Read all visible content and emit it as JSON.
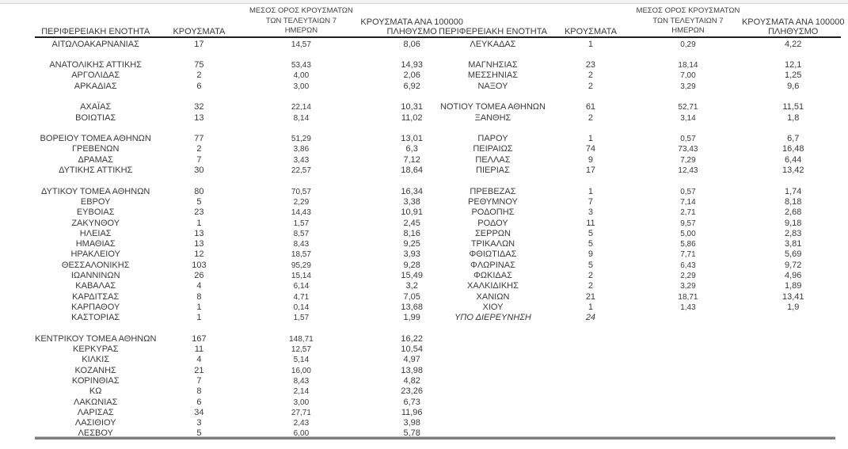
{
  "colors": {
    "text": "#3a3a3a",
    "header_rule": "#1f1f1f",
    "bottom_rule": "#7d7d7d",
    "top_strip": "#f1f1ef"
  },
  "columns": {
    "region": "ΠΕΡΙΦΕΡΕΙΑΚΗ ΕΝΟΤΗΤΑ",
    "cases": "ΚΡΟΥΣΜΑΤΑ",
    "avg7_lines": [
      "ΜΕΣΟΣ ΟΡΟΣ ΚΡΟΥΣΜΑΤΩΝ",
      "ΤΩΝ ΤΕΛΕΥΤΑΙΩΝ 7",
      "ΗΜΕΡΩΝ"
    ],
    "per100k_lines": [
      "ΚΡΟΥΣΜΑΤΑ ΑΝΑ 100000",
      "ΠΛΗΘΥΣΜΟ"
    ]
  },
  "tables": {
    "left": {
      "rows": [
        {
          "region": "ΑΙΤΩΛΟΑΚΑΡΝΑΝΙΑΣ",
          "cases": "17",
          "avg7": "14,57",
          "per100k": "8,06"
        },
        {
          "blank": true
        },
        {
          "region": "ΑΝΑΤΟΛΙΚΗΣ ΑΤΤΙΚΗΣ",
          "cases": "75",
          "avg7": "53,43",
          "per100k": "14,93"
        },
        {
          "region": "ΑΡΓΟΛΙΔΑΣ",
          "cases": "2",
          "avg7": "4,00",
          "per100k": "2,06"
        },
        {
          "region": "ΑΡΚΑΔΙΑΣ",
          "cases": "6",
          "avg7": "3,00",
          "per100k": "6,92"
        },
        {
          "blank": true
        },
        {
          "region": "ΑΧΑΪΑΣ",
          "cases": "32",
          "avg7": "22,14",
          "per100k": "10,31"
        },
        {
          "region": "ΒΟΙΩΤΙΑΣ",
          "cases": "13",
          "avg7": "8,14",
          "per100k": "11,02"
        },
        {
          "blank": true
        },
        {
          "region": "ΒΟΡΕΙΟΥ ΤΟΜΕΑ ΑΘΗΝΩΝ",
          "cases": "77",
          "avg7": "51,29",
          "per100k": "13,01"
        },
        {
          "region": "ΓΡΕΒΕΝΩΝ",
          "cases": "2",
          "avg7": "3,86",
          "per100k": "6,3"
        },
        {
          "region": "ΔΡΑΜΑΣ",
          "cases": "7",
          "avg7": "3,43",
          "per100k": "7,12"
        },
        {
          "region": "ΔΥΤΙΚΗΣ ΑΤΤΙΚΗΣ",
          "cases": "30",
          "avg7": "22,57",
          "per100k": "18,64"
        },
        {
          "blank": true
        },
        {
          "region": "ΔΥΤΙΚΟΥ ΤΟΜΕΑ ΑΘΗΝΩΝ",
          "cases": "80",
          "avg7": "70,57",
          "per100k": "16,34"
        },
        {
          "region": "ΕΒΡΟΥ",
          "cases": "5",
          "avg7": "2,29",
          "per100k": "3,38"
        },
        {
          "region": "ΕΥΒΟΙΑΣ",
          "cases": "23",
          "avg7": "14,43",
          "per100k": "10,91"
        },
        {
          "region": "ΖΑΚΥΝΘΟΥ",
          "cases": "1",
          "avg7": "1,57",
          "per100k": "2,45"
        },
        {
          "region": "ΗΛΕΙΑΣ",
          "cases": "13",
          "avg7": "8,57",
          "per100k": "8,16"
        },
        {
          "region": "ΗΜΑΘΙΑΣ",
          "cases": "13",
          "avg7": "8,43",
          "per100k": "9,25"
        },
        {
          "region": "ΗΡΑΚΛΕΙΟΥ",
          "cases": "12",
          "avg7": "18,57",
          "per100k": "3,93"
        },
        {
          "region": "ΘΕΣΣΑΛΟΝΙΚΗΣ",
          "cases": "103",
          "avg7": "95,29",
          "per100k": "9,28"
        },
        {
          "region": "ΙΩΑΝΝΙΝΩΝ",
          "cases": "26",
          "avg7": "15,14",
          "per100k": "15,49"
        },
        {
          "region": "ΚΑΒΑΛΑΣ",
          "cases": "4",
          "avg7": "6,14",
          "per100k": "3,2"
        },
        {
          "region": "ΚΑΡΔΙΤΣΑΣ",
          "cases": "8",
          "avg7": "4,71",
          "per100k": "7,05"
        },
        {
          "region": "ΚΑΡΠΑΘΟΥ",
          "cases": "1",
          "avg7": "0,14",
          "per100k": "13,68"
        },
        {
          "region": "ΚΑΣΤΟΡΙΑΣ",
          "cases": "1",
          "avg7": "1,57",
          "per100k": "1,99"
        },
        {
          "blank": true
        },
        {
          "region": "ΚΕΝΤΡΙΚΟΥ ΤΟΜΕΑ ΑΘΗΝΩΝ",
          "cases": "167",
          "avg7": "148,71",
          "per100k": "16,22"
        },
        {
          "region": "ΚΕΡΚΥΡΑΣ",
          "cases": "11",
          "avg7": "12,57",
          "per100k": "10,54"
        },
        {
          "region": "ΚΙΛΚΙΣ",
          "cases": "4",
          "avg7": "5,14",
          "per100k": "4,97"
        },
        {
          "region": "ΚΟΖΑΝΗΣ",
          "cases": "21",
          "avg7": "16,00",
          "per100k": "13,98"
        },
        {
          "region": "ΚΟΡΙΝΘΙΑΣ",
          "cases": "7",
          "avg7": "8,43",
          "per100k": "4,82"
        },
        {
          "region": "ΚΩ",
          "cases": "8",
          "avg7": "2,14",
          "per100k": "23,26"
        },
        {
          "region": "ΛΑΚΩΝΙΑΣ",
          "cases": "6",
          "avg7": "3,00",
          "per100k": "6,73"
        },
        {
          "region": "ΛΑΡΙΣΑΣ",
          "cases": "34",
          "avg7": "27,71",
          "per100k": "11,96"
        },
        {
          "region": "ΛΑΣΙΘΙΟΥ",
          "cases": "3",
          "avg7": "2,43",
          "per100k": "3,98"
        },
        {
          "region": "ΛΕΣΒΟΥ",
          "cases": "5",
          "avg7": "6,00",
          "per100k": "5,78"
        }
      ]
    },
    "right": {
      "rows": [
        {
          "region": "ΛΕΥΚΑΔΑΣ",
          "cases": "1",
          "avg7": "0,29",
          "per100k": "4,22"
        },
        {
          "blank": true
        },
        {
          "region": "ΜΑΓΝΗΣΙΑΣ",
          "cases": "23",
          "avg7": "18,14",
          "per100k": "12,1"
        },
        {
          "region": "ΜΕΣΣΗΝΙΑΣ",
          "cases": "2",
          "avg7": "7,00",
          "per100k": "1,25"
        },
        {
          "region": "ΝΑΞΟΥ",
          "cases": "2",
          "avg7": "3,29",
          "per100k": "9,6"
        },
        {
          "blank": true
        },
        {
          "region": "ΝΟΤΙΟΥ ΤΟΜΕΑ ΑΘΗΝΩΝ",
          "cases": "61",
          "avg7": "52,71",
          "per100k": "11,51"
        },
        {
          "region": "ΞΑΝΘΗΣ",
          "cases": "2",
          "avg7": "3,14",
          "per100k": "1,8"
        },
        {
          "blank": true
        },
        {
          "region": "ΠΑΡΟΥ",
          "cases": "1",
          "avg7": "0,57",
          "per100k": "6,7"
        },
        {
          "region": "ΠΕΙΡΑΙΩΣ",
          "cases": "74",
          "avg7": "73,43",
          "per100k": "16,48"
        },
        {
          "region": "ΠΕΛΛΑΣ",
          "cases": "9",
          "avg7": "7,29",
          "per100k": "6,44"
        },
        {
          "region": "ΠΙΕΡΙΑΣ",
          "cases": "17",
          "avg7": "12,43",
          "per100k": "13,42"
        },
        {
          "blank": true
        },
        {
          "region": "ΠΡΕΒΕΖΑΣ",
          "cases": "1",
          "avg7": "0,57",
          "per100k": "1,74"
        },
        {
          "region": "ΡΕΘΥΜΝΟΥ",
          "cases": "7",
          "avg7": "7,14",
          "per100k": "8,18"
        },
        {
          "region": "ΡΟΔΟΠΗΣ",
          "cases": "3",
          "avg7": "2,71",
          "per100k": "2,68"
        },
        {
          "region": "ΡΟΔΟΥ",
          "cases": "11",
          "avg7": "9,57",
          "per100k": "9,18"
        },
        {
          "region": "ΣΕΡΡΩΝ",
          "cases": "5",
          "avg7": "5,00",
          "per100k": "2,83"
        },
        {
          "region": "ΤΡΙΚΑΛΩΝ",
          "cases": "5",
          "avg7": "5,86",
          "per100k": "3,81"
        },
        {
          "region": "ΦΘΙΩΤΙΔΑΣ",
          "cases": "9",
          "avg7": "7,71",
          "per100k": "5,69"
        },
        {
          "region": "ΦΛΩΡΙΝΑΣ",
          "cases": "5",
          "avg7": "6,43",
          "per100k": "9,72"
        },
        {
          "region": "ΦΩΚΙΔΑΣ",
          "cases": "2",
          "avg7": "2,29",
          "per100k": "4,96"
        },
        {
          "region": "ΧΑΛΚΙΔΙΚΗΣ",
          "cases": "2",
          "avg7": "3,29",
          "per100k": "1,89"
        },
        {
          "region": "ΧΑΝΙΩΝ",
          "cases": "21",
          "avg7": "18,71",
          "per100k": "13,41"
        },
        {
          "region": "ΧΙΟΥ",
          "cases": "1",
          "avg7": "1,43",
          "per100k": "1,9"
        },
        {
          "region": "ΥΠΟ ΔΙΕΡΕΥΝΗΣΗ",
          "cases": "24",
          "avg7": "",
          "per100k": "",
          "italic": true
        }
      ]
    }
  }
}
